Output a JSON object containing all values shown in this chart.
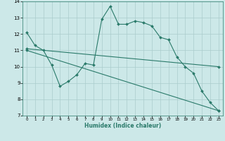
{
  "xlabel": "Humidex (Indice chaleur)",
  "xlim": [
    -0.5,
    23.5
  ],
  "ylim": [
    7,
    14
  ],
  "xticks": [
    0,
    1,
    2,
    3,
    4,
    5,
    6,
    7,
    8,
    9,
    10,
    11,
    12,
    13,
    14,
    15,
    16,
    17,
    18,
    19,
    20,
    21,
    22,
    23
  ],
  "yticks": [
    7,
    8,
    9,
    10,
    11,
    12,
    13,
    14
  ],
  "background_color": "#cce8e8",
  "grid_color": "#aacccc",
  "line_color": "#2a7a6a",
  "line1_x": [
    0,
    1,
    2,
    3,
    4,
    5,
    6,
    7,
    8,
    9,
    10,
    11,
    12,
    13,
    14,
    15,
    16,
    17,
    18,
    19,
    20,
    21,
    22,
    23
  ],
  "line1_y": [
    12.1,
    11.3,
    11.0,
    10.1,
    8.8,
    9.1,
    9.5,
    10.2,
    10.1,
    12.9,
    13.7,
    12.6,
    12.6,
    12.8,
    12.7,
    12.5,
    11.8,
    11.65,
    10.6,
    10.0,
    9.6,
    8.5,
    7.8,
    7.3
  ],
  "line2_x": [
    0,
    23
  ],
  "line2_y": [
    11.1,
    10.0
  ],
  "line3_x": [
    0,
    23
  ],
  "line3_y": [
    11.0,
    7.3
  ],
  "marker": "D",
  "markersize": 2.0,
  "linewidth": 0.8
}
